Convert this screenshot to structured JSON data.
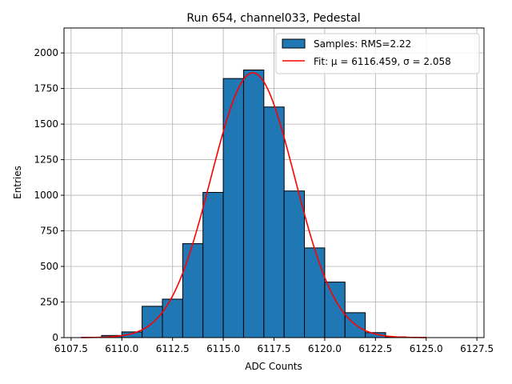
{
  "chart_data": {
    "type": "bar",
    "title": "Run 654, channel033, Pedestal",
    "xlabel": "ADC Counts",
    "ylabel": "Entries",
    "xlim": [
      6107.15,
      6127.85
    ],
    "ylim": [
      0,
      2175
    ],
    "xticks": [
      6107.5,
      6110.0,
      6112.5,
      6115.0,
      6117.5,
      6120.0,
      6122.5,
      6125.0,
      6127.5
    ],
    "xtick_labels": [
      "6107.5",
      "6110.0",
      "6112.5",
      "6115.0",
      "6117.5",
      "6120.0",
      "6122.5",
      "6125.0",
      "6127.5"
    ],
    "yticks": [
      0,
      250,
      500,
      750,
      1000,
      1250,
      1500,
      1750,
      2000
    ],
    "ytick_labels": [
      "0",
      "250",
      "500",
      "750",
      "1000",
      "1250",
      "1500",
      "1750",
      "2000"
    ],
    "grid": true,
    "legend_position": "top-right",
    "histogram": {
      "name": "Samples: RMS=2.22",
      "color": "#1f77b4",
      "edge_color": "#000000",
      "bin_edges": [
        6108,
        6109,
        6110,
        6111,
        6112,
        6113,
        6114,
        6115,
        6116,
        6117,
        6118,
        6119,
        6120,
        6121,
        6122,
        6123,
        6124,
        6125,
        6126,
        6127
      ],
      "counts": [
        2,
        15,
        40,
        220,
        270,
        660,
        1020,
        1820,
        1880,
        1620,
        1030,
        630,
        390,
        175,
        35,
        5,
        1,
        0,
        0
      ]
    },
    "fit": {
      "name": "Fit: μ = 6116.459, σ = 2.058",
      "color": "#ff0000",
      "mu": 6116.459,
      "sigma": 2.058,
      "amplitude": 1860,
      "x_range": [
        6108,
        6125
      ]
    }
  }
}
